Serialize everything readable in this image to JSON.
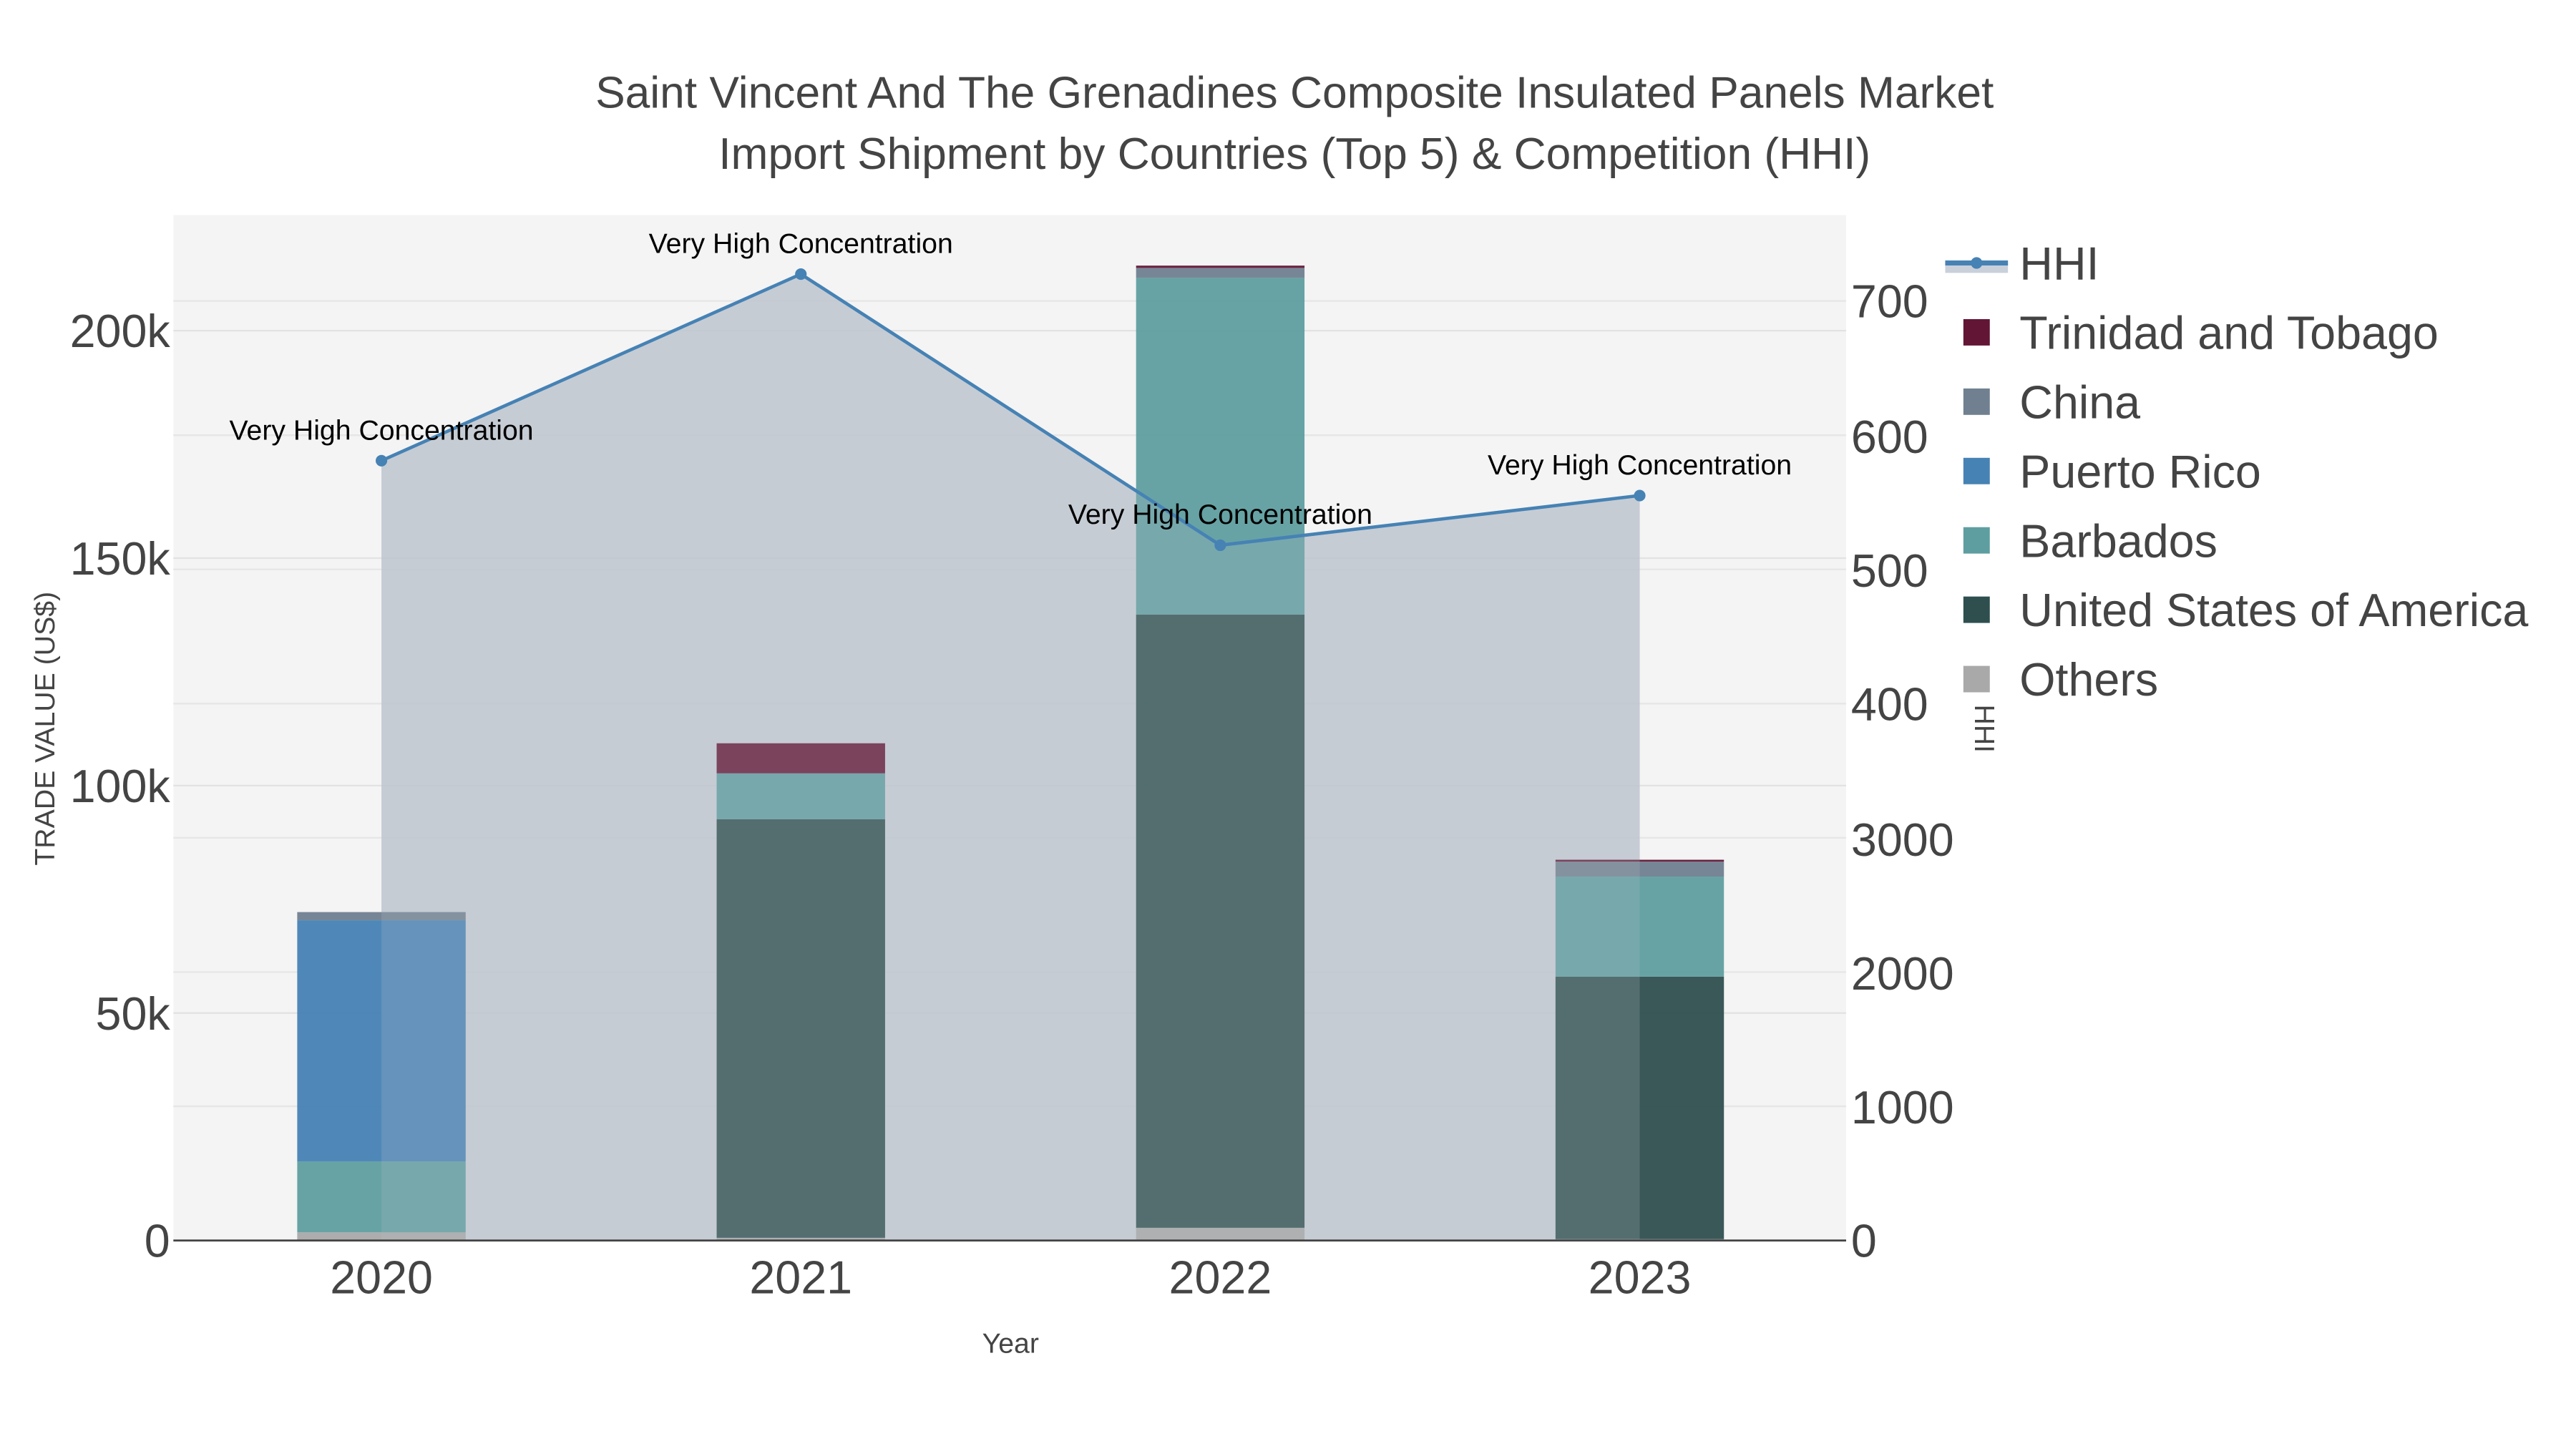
{
  "title": {
    "line1": "Saint Vincent And The Grenadines Composite Insulated Panels Market",
    "line2": "Import Shipment by Countries (Top 5) & Competition (HHI)"
  },
  "axes": {
    "x_title": "Year",
    "y_left_title": "TRADE VALUE (US$)",
    "y_right_title": "HHI",
    "x_ticks": [
      "2020",
      "2021",
      "2022",
      "2023"
    ],
    "y_left_ticks": [
      "0",
      "50k",
      "100k",
      "150k",
      "200k"
    ],
    "y_right_ticks": [
      "0",
      "1000",
      "2000",
      "3000",
      "400",
      "500",
      "600",
      "700"
    ]
  },
  "legend": {
    "items": [
      {
        "label": "HHI",
        "color": "#4682b4"
      },
      {
        "label": "Trinidad and Tobago",
        "color": "#631535"
      },
      {
        "label": "China",
        "color": "#708090"
      },
      {
        "label": "Puerto Rico",
        "color": "#4682b4"
      },
      {
        "label": "Barbados",
        "color": "#5f9ea0"
      },
      {
        "label": "United States of America",
        "color": "#2f4f4f"
      },
      {
        "label": "Others",
        "color": "#a9a9a9"
      }
    ]
  },
  "annotations": [
    "Very High Concentration",
    "Very High Concentration",
    "Very High Concentration",
    "Very High Concentration"
  ],
  "chart_data": {
    "type": "bar",
    "subtype": "stacked bar with line overlay (secondary axis)",
    "title": "Saint Vincent And The Grenadines Composite Insulated Panels Market Import Shipment by Countries (Top 5) & Competition (HHI)",
    "xlabel": "Year",
    "ylabel": "TRADE VALUE (US$)",
    "y2label": "HHI",
    "categories": [
      "2020",
      "2021",
      "2022",
      "2023"
    ],
    "ylim": [
      0,
      224000
    ],
    "series": [
      {
        "name": "Others",
        "color": "#a9a9a9",
        "values": [
          1800,
          600,
          2800,
          300
        ]
      },
      {
        "name": "United States of America",
        "color": "#2f4f4f",
        "values": [
          0,
          92000,
          134800,
          57700
        ]
      },
      {
        "name": "Barbados",
        "color": "#5f9ea0",
        "values": [
          15600,
          10100,
          74000,
          22000
        ]
      },
      {
        "name": "Puerto Rico",
        "color": "#4682b4",
        "values": [
          53000,
          0,
          0,
          0
        ]
      },
      {
        "name": "China",
        "color": "#708090",
        "values": [
          1800,
          0,
          2200,
          3300
        ]
      },
      {
        "name": "Trinidad and Tobago",
        "color": "#631535",
        "values": [
          0,
          6600,
          500,
          400
        ]
      }
    ],
    "line_series": {
      "name": "HHI",
      "axis": "right",
      "color": "#4682b4",
      "values": [
        581,
        720,
        518,
        555
      ],
      "labels": [
        "Very High Concentration",
        "Very High Concentration",
        "Very High Concentration",
        "Very High Concentration"
      ]
    },
    "grid": true,
    "legend_position": "right"
  }
}
